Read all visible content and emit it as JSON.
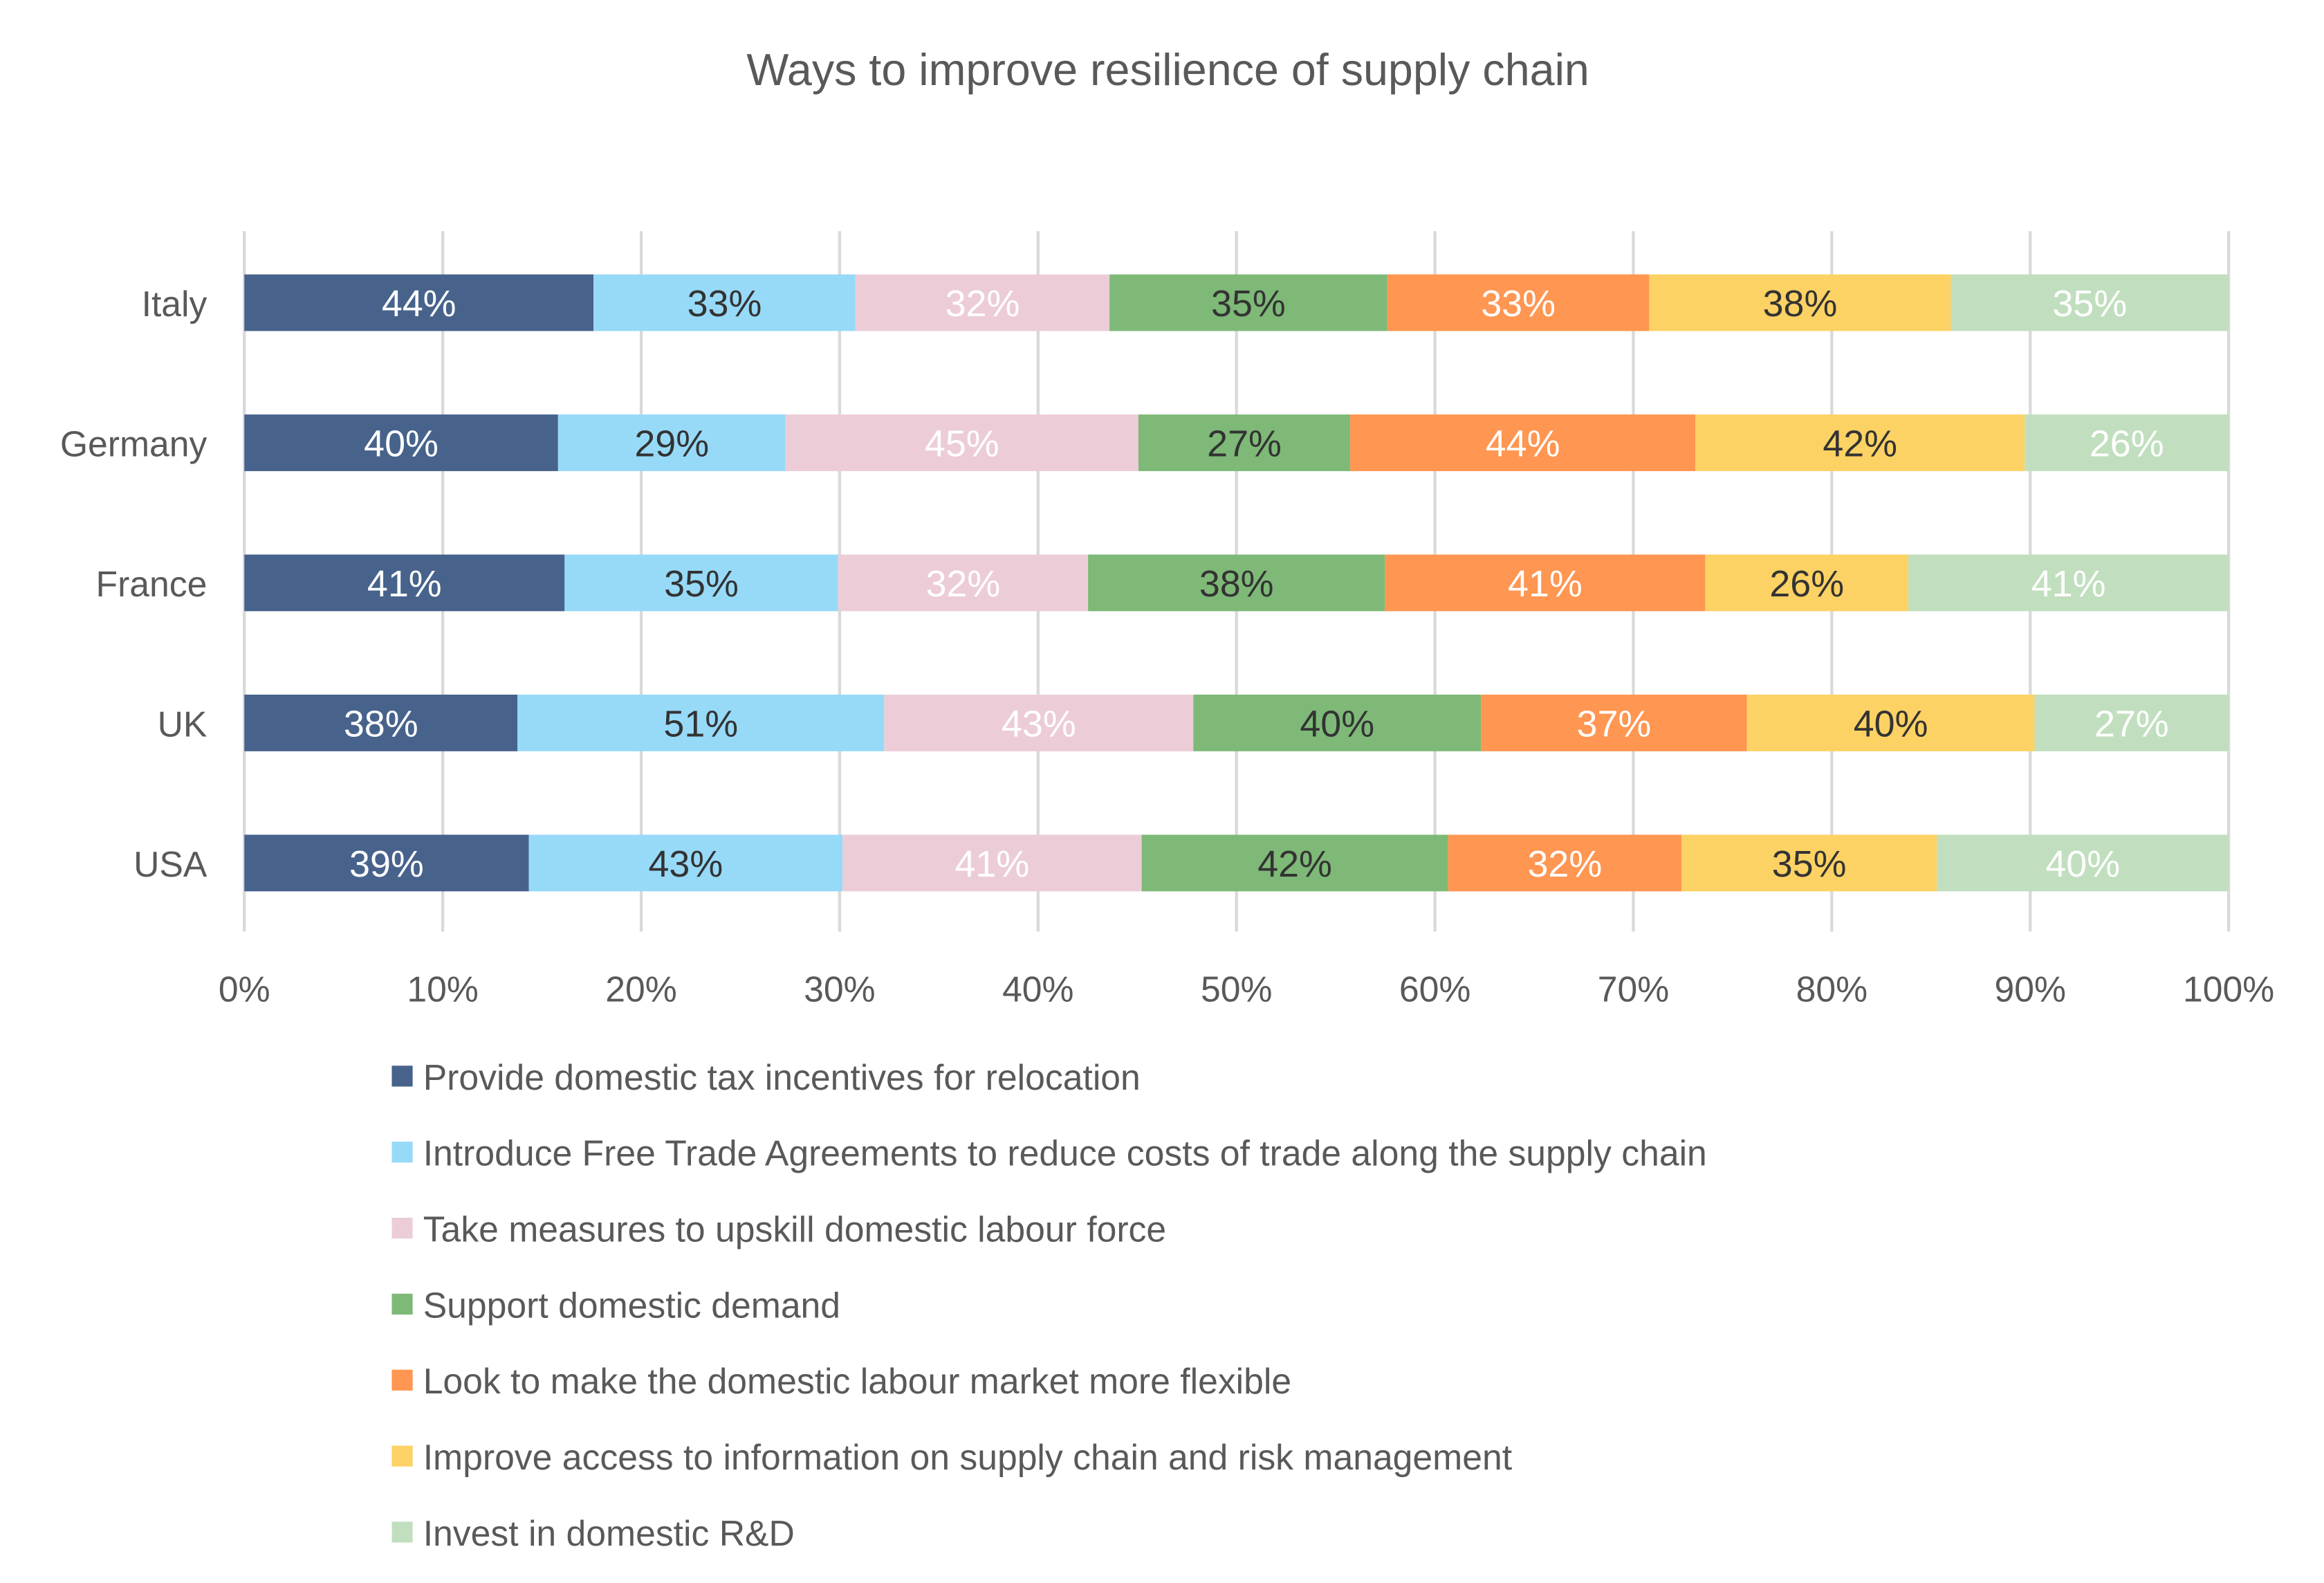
{
  "chart_data": {
    "type": "bar",
    "orientation": "horizontal",
    "stacked": "percent",
    "title": "Ways to improve resilience of supply chain",
    "xlabel": "",
    "ylabel": "",
    "xlim": [
      0,
      100
    ],
    "grid": true,
    "legend_position": "bottom",
    "categories": [
      "Italy",
      "Germany",
      "France",
      "UK",
      "USA"
    ],
    "x_ticks": [
      "0%",
      "10%",
      "20%",
      "30%",
      "40%",
      "50%",
      "60%",
      "70%",
      "80%",
      "90%",
      "100%"
    ],
    "series": [
      {
        "name": "Provide domestic tax incentives for relocation",
        "color": "#47638c",
        "label_color": "#ffffff",
        "values": [
          44,
          40,
          41,
          38,
          39
        ]
      },
      {
        "name": "Introduce Free Trade Agreements to reduce costs of trade along the supply chain",
        "color": "#97daf8",
        "label_color": "#333333",
        "values": [
          33,
          29,
          35,
          51,
          43
        ]
      },
      {
        "name": "Take measures to upskill domestic labour force",
        "color": "#eccdd7",
        "label_color": "#ffffff",
        "values": [
          32,
          45,
          32,
          43,
          41
        ]
      },
      {
        "name": "Support domestic demand",
        "color": "#7eb977",
        "label_color": "#333333",
        "values": [
          35,
          27,
          38,
          40,
          42
        ]
      },
      {
        "name": "Look to make the domestic labour market more flexible",
        "color": "#ff9651",
        "label_color": "#ffffff",
        "values": [
          33,
          44,
          41,
          37,
          32
        ]
      },
      {
        "name": "Improve access to information on supply chain and risk management",
        "color": "#fdd264",
        "label_color": "#333333",
        "values": [
          38,
          42,
          26,
          40,
          35
        ]
      },
      {
        "name": "Invest in domestic R&D",
        "color": "#c1dfbe",
        "label_color": "#ffffff",
        "values": [
          35,
          26,
          41,
          27,
          40
        ]
      }
    ]
  }
}
